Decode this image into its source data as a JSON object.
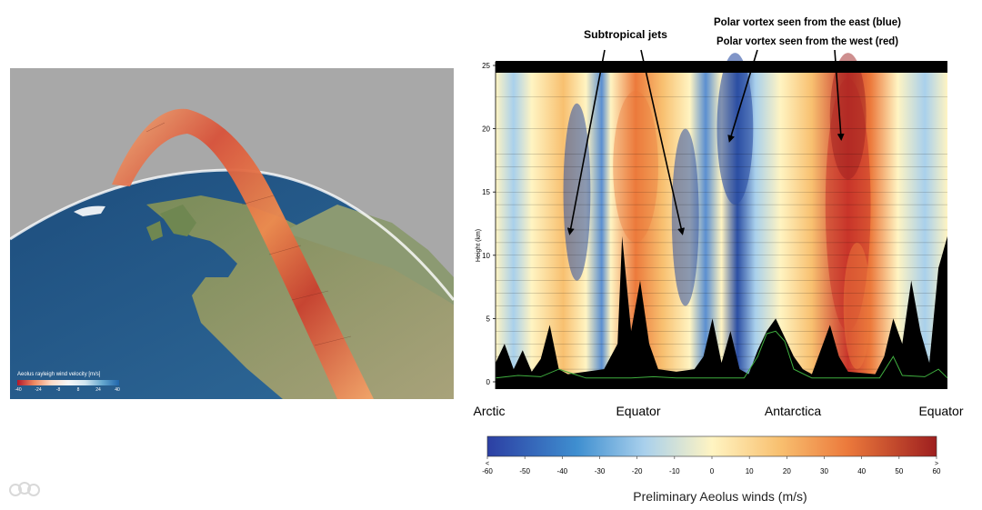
{
  "globe": {
    "legend_title": "Aeolus rayleigh wind velocity [m/s]",
    "legend_ticks": [
      "-40",
      "-24",
      "-8",
      "8",
      "24",
      "40"
    ]
  },
  "colors": {
    "blue_strong": "#2c4fa3",
    "blue": "#5b8fd0",
    "blue_light": "#a9d0ec",
    "neutral": "#fff4c2",
    "orange_light": "#f8c070",
    "orange": "#ec7a3c",
    "red": "#c8342a",
    "red_dark": "#9e1f1f",
    "surface_line": "#3fae3f"
  },
  "chart_data": {
    "type": "heatmap",
    "title": "",
    "ylabel": "Height (km)",
    "yticks": [
      "0",
      "5",
      "10",
      "15",
      "20",
      "25"
    ],
    "ylim": [
      0,
      25
    ],
    "x_labels": [
      "Arctic",
      "Equator",
      "Antarctica",
      "Equator"
    ],
    "colorbar": {
      "label": "Preliminary Aeolus winds (m/s)",
      "ticks": [
        "-60",
        "-50",
        "-40",
        "-30",
        "-20",
        "-10",
        "0",
        "10",
        "20",
        "30",
        "40",
        "50",
        "60"
      ],
      "min_marker": "<",
      "max_marker": ">",
      "range": [
        -60,
        60
      ]
    },
    "annotations": [
      {
        "text": "Subtropical jets"
      },
      {
        "text": "Polar vortex seen from the east (blue)"
      },
      {
        "text": "Polar vortex seen from the west (red)"
      }
    ]
  }
}
